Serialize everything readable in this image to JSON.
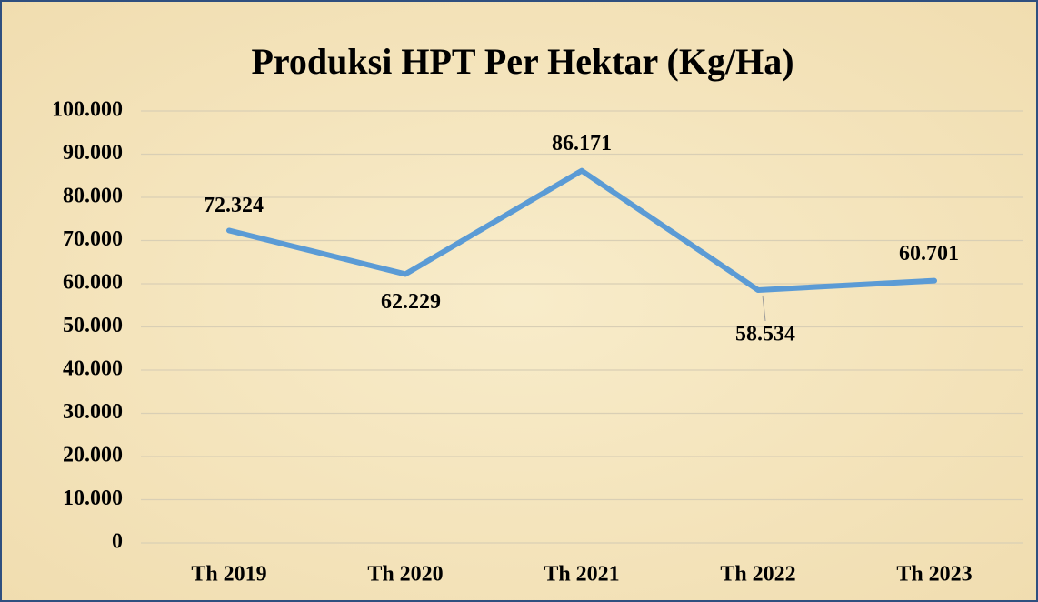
{
  "chart_data": {
    "type": "line",
    "title": "Produksi HPT Per Hektar (Kg/Ha)",
    "categories": [
      "Th 2019",
      "Th 2020",
      "Th 2021",
      "Th 2022",
      "Th 2023"
    ],
    "series": [
      {
        "name": "Produksi HPT Per Hektar",
        "color": "#5b9bd5",
        "values": [
          72324,
          62229,
          86171,
          58534,
          60701
        ],
        "value_labels": [
          "72.324",
          "62.229",
          "86.171",
          "58.534",
          "60.701"
        ]
      }
    ],
    "ylim": [
      0,
      100000
    ],
    "yticks": [
      0,
      {
        "value": 10000,
        "label": "10.000"
      },
      {
        "value": 20000,
        "label": "20.000"
      },
      {
        "value": 30000,
        "label": "30.000"
      },
      {
        "value": 40000,
        "label": "40.000"
      },
      {
        "value": 50000,
        "label": "50.000"
      },
      {
        "value": 60000,
        "label": "60.000"
      },
      {
        "value": 70000,
        "label": "70.000"
      },
      {
        "value": 80000,
        "label": "80.000"
      },
      {
        "value": 90000,
        "label": "90.000"
      },
      {
        "value": 100000,
        "label": "100.000"
      }
    ],
    "grid": true
  }
}
